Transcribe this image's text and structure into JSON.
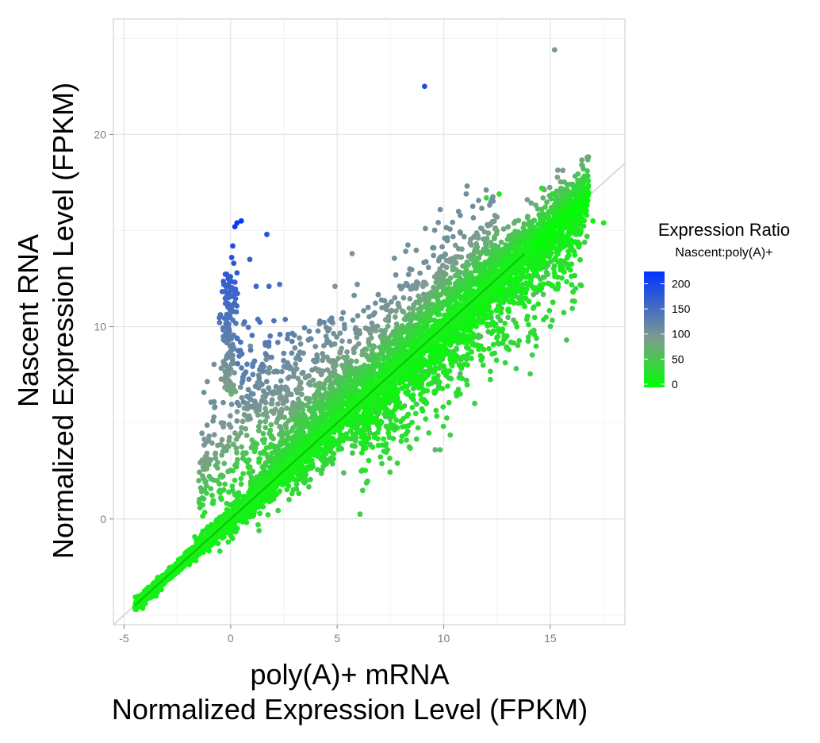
{
  "chart_data": {
    "type": "scatter",
    "x_range": [
      -5.5,
      18.5
    ],
    "y_range": [
      -5.5,
      26
    ],
    "x_ticks": [
      -5,
      0,
      5,
      10,
      15
    ],
    "y_ticks": [
      0,
      10,
      20
    ],
    "x_tick_labels": [
      "-5",
      "0",
      "5",
      "10",
      "15"
    ],
    "y_tick_labels": [
      "0",
      "10",
      "20"
    ],
    "xlabel_line1": "poly(A)+ mRNA",
    "xlabel_line2": "Normalized Expression Level (FPKM)",
    "ylabel_line1": "Nascent RNA",
    "ylabel_line2": "Normalized Expression Level (FPKM)",
    "grid": true,
    "reference_line": {
      "slope": 1,
      "intercept": 0,
      "color": "#d0d0d0"
    },
    "legend": {
      "title": "Expression Ratio",
      "subtitle": "Nascent:poly(A)+",
      "placement": "right",
      "ticks": [
        {
          "value": 200,
          "label": "200"
        },
        {
          "value": 150,
          "label": "150"
        },
        {
          "value": 100,
          "label": "100"
        },
        {
          "value": 50,
          "label": "50"
        },
        {
          "value": 0,
          "label": "0"
        }
      ],
      "color_low": "#00ff00",
      "color_mid": "#7f9c8e",
      "color_high": "#0033ff"
    },
    "outliers": [
      {
        "x": 15.2,
        "y": 24.4,
        "ratio": 60
      },
      {
        "x": 9.1,
        "y": 22.5,
        "ratio": 180
      },
      {
        "x": 0.5,
        "y": 15.5,
        "ratio": 215
      },
      {
        "x": 0.3,
        "y": 15.4,
        "ratio": 210
      },
      {
        "x": 0.2,
        "y": 15.2,
        "ratio": 205
      },
      {
        "x": 1.7,
        "y": 14.8,
        "ratio": 170
      },
      {
        "x": 0.1,
        "y": 14.2,
        "ratio": 180
      },
      {
        "x": 0.05,
        "y": 13.6,
        "ratio": 170
      },
      {
        "x": 0.15,
        "y": 13.3,
        "ratio": 165
      },
      {
        "x": 0.9,
        "y": 13.5,
        "ratio": 150
      },
      {
        "x": 0.3,
        "y": 12.8,
        "ratio": 160
      },
      {
        "x": 5.7,
        "y": 13.8,
        "ratio": 60
      },
      {
        "x": 12.0,
        "y": 16.7,
        "ratio": 20
      },
      {
        "x": 12.6,
        "y": 16.9,
        "ratio": 15
      },
      {
        "x": 14.6,
        "y": 17.2,
        "ratio": 15
      },
      {
        "x": 9.6,
        "y": 3.6,
        "ratio": 45
      },
      {
        "x": 1.2,
        "y": 12.1,
        "ratio": 140
      },
      {
        "x": 1.8,
        "y": 12.1,
        "ratio": 130
      },
      {
        "x": 2.3,
        "y": 12.2,
        "ratio": 120
      },
      {
        "x": 4.9,
        "y": 12.1,
        "ratio": 55
      },
      {
        "x": 17.5,
        "y": 15.4,
        "ratio": 5
      },
      {
        "x": 17.0,
        "y": 15.5,
        "ratio": 5
      },
      {
        "x": 16.3,
        "y": 16.7,
        "ratio": 10
      },
      {
        "x": 15.1,
        "y": 16.9,
        "ratio": 12
      }
    ],
    "vertical_cluster": {
      "x_center": -0.1,
      "x_spread": 0.35,
      "y_min": 6.5,
      "y_max": 12.8
    },
    "main_cloud": {
      "x_min": -4.5,
      "x_max": 16.8,
      "slope": 1,
      "intercept": 0
    }
  }
}
